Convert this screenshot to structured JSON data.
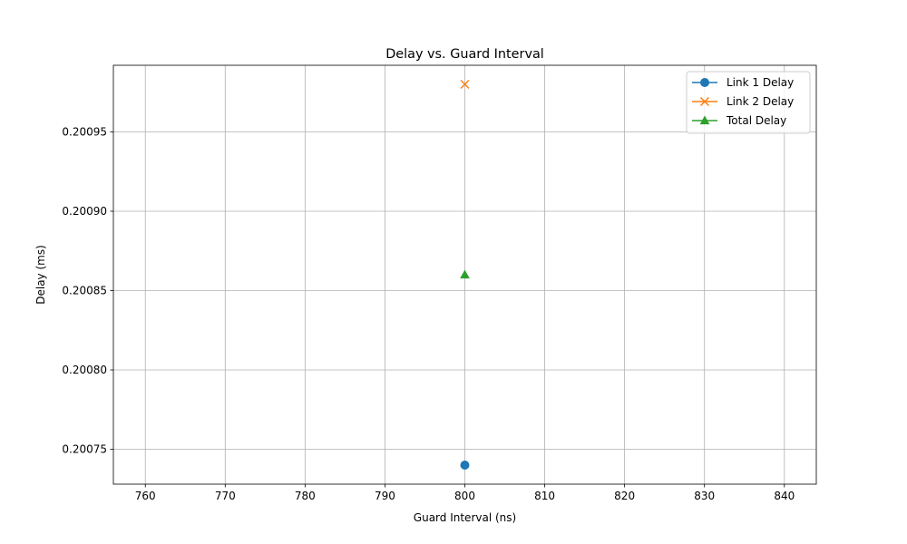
{
  "chart_data": {
    "type": "line",
    "title": "Delay vs. Guard Interval",
    "xlabel": "Guard Interval (ns)",
    "ylabel": "Delay (ms)",
    "xlim": [
      756,
      844
    ],
    "ylim": [
      0.200728,
      0.200992
    ],
    "xticks": [
      760,
      770,
      780,
      790,
      800,
      810,
      820,
      830,
      840
    ],
    "yticks": [
      0.20075,
      0.2008,
      0.20085,
      0.2009,
      0.20095
    ],
    "ytick_labels": [
      "0.20075",
      "0.20080",
      "0.20085",
      "0.20090",
      "0.20095"
    ],
    "grid": true,
    "legend_position": "top-right",
    "series": [
      {
        "name": "Link 1 Delay",
        "marker": "circle",
        "color": "#1f77b4",
        "x": [
          800
        ],
        "y": [
          0.20074
        ]
      },
      {
        "name": "Link 2 Delay",
        "marker": "x",
        "color": "#ff7f0e",
        "x": [
          800
        ],
        "y": [
          0.20098
        ]
      },
      {
        "name": "Total Delay",
        "marker": "triangle",
        "color": "#2ca02c",
        "x": [
          800
        ],
        "y": [
          0.20086
        ]
      }
    ]
  }
}
